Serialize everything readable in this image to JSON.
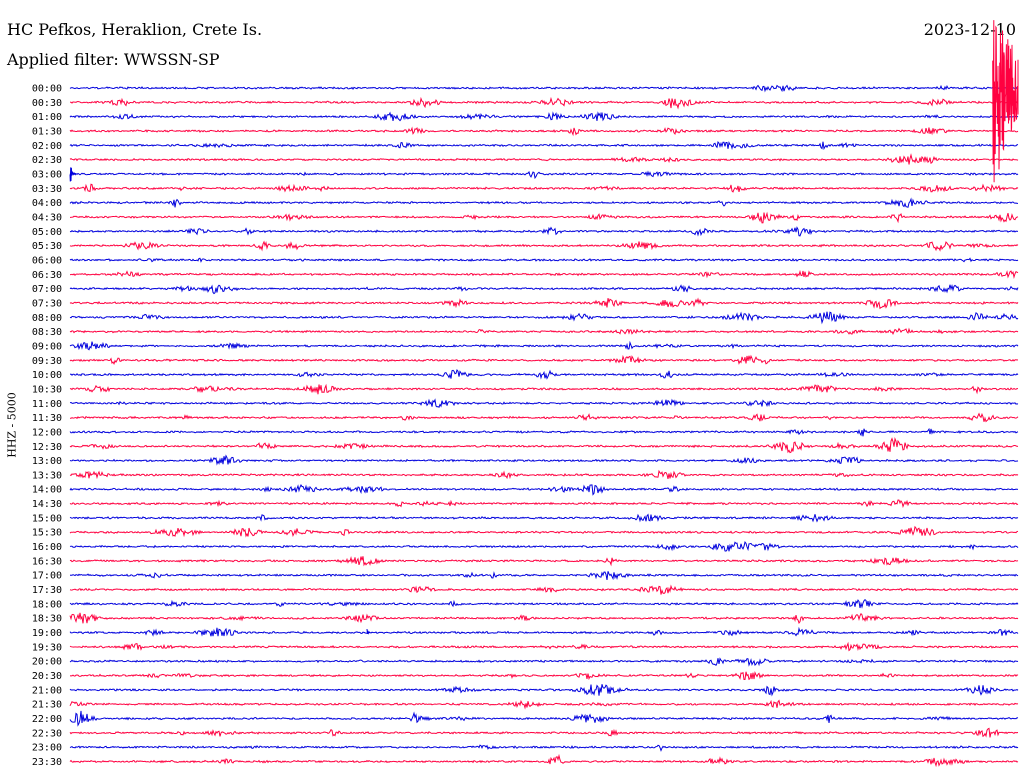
{
  "header": {
    "station": "HC Pefkos, Heraklion, Crete Is.",
    "filter": "Applied filter: WWSSN-SP",
    "date": "2023-12-10"
  },
  "channel_label": "HHZ - 5000",
  "colors": {
    "even_row": "#0000dd",
    "odd_row": "#ff0040",
    "text": "#000000"
  },
  "chart_data": {
    "type": "line",
    "title": "",
    "ylabel": "HHZ - 5000",
    "time_labels": [
      "00:00",
      "00:30",
      "01:00",
      "01:30",
      "02:00",
      "02:30",
      "03:00",
      "03:30",
      "04:00",
      "04:30",
      "05:00",
      "05:30",
      "06:00",
      "06:30",
      "07:00",
      "07:30",
      "08:00",
      "08:30",
      "09:00",
      "09:30",
      "10:00",
      "10:30",
      "11:00",
      "11:30",
      "12:00",
      "12:30",
      "13:00",
      "13:30",
      "14:00",
      "14:30",
      "15:00",
      "15:30",
      "16:00",
      "16:30",
      "17:00",
      "17:30",
      "18:00",
      "18:30",
      "19:00",
      "19:30",
      "20:00",
      "20:30",
      "21:00",
      "21:30",
      "22:00",
      "22:30",
      "23:00",
      "23:30"
    ],
    "row_duration_minutes": 30,
    "large_events": [
      {
        "row": "03:00",
        "minute": 0.0,
        "amplitude": 12,
        "decay": 6
      },
      {
        "row": "19:00",
        "minute": 9.4,
        "amplitude": 8,
        "decay": 3
      },
      {
        "row": "00:00",
        "minute": 29.2,
        "amplitude": 110,
        "decay": 60
      }
    ]
  }
}
